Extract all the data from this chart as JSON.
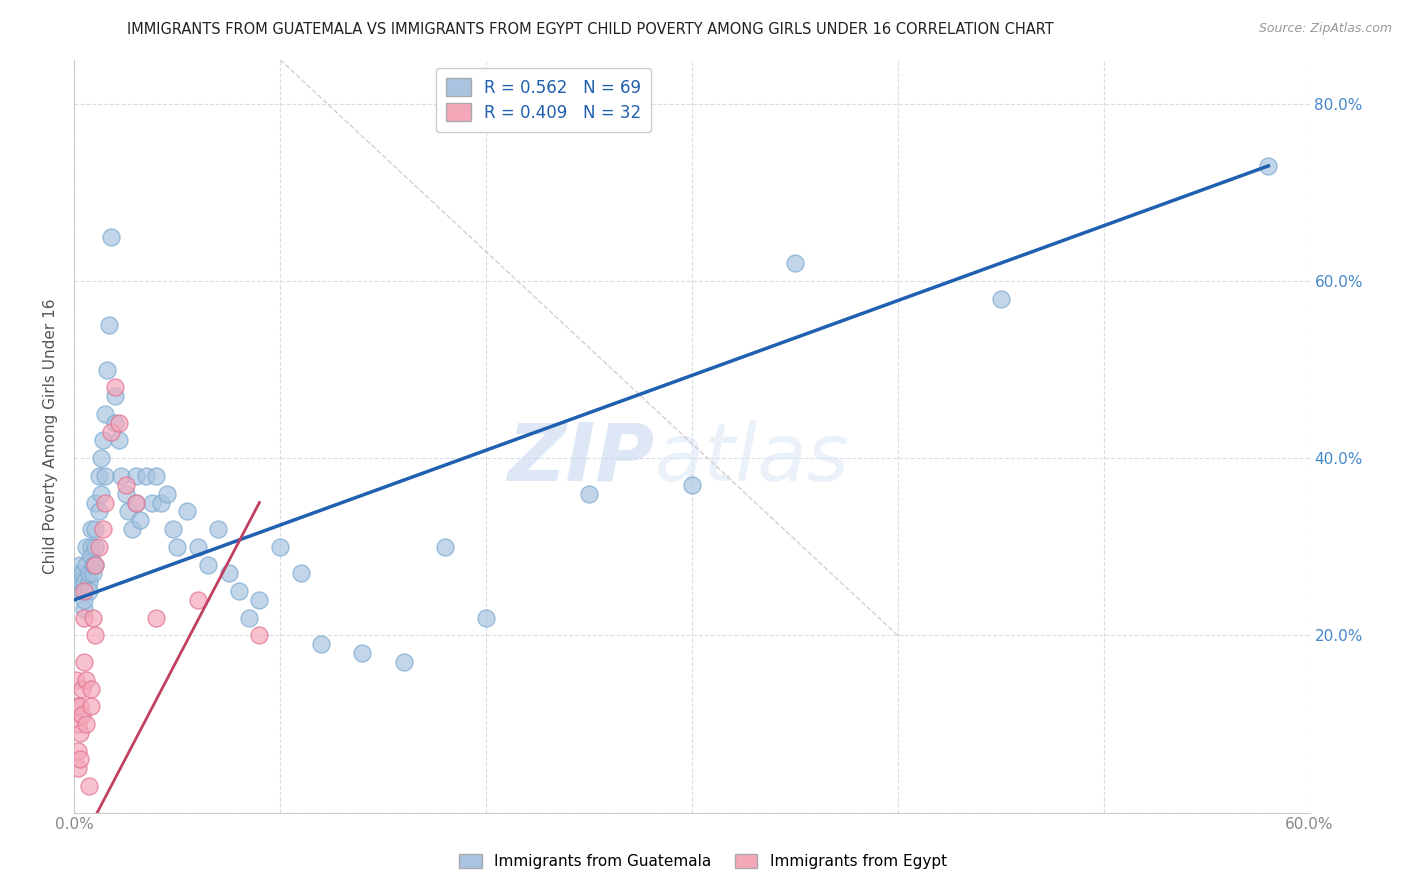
{
  "title": "IMMIGRANTS FROM GUATEMALA VS IMMIGRANTS FROM EGYPT CHILD POVERTY AMONG GIRLS UNDER 16 CORRELATION CHART",
  "source": "Source: ZipAtlas.com",
  "ylabel": "Child Poverty Among Girls Under 16",
  "xlim": [
    0.0,
    0.6
  ],
  "ylim": [
    0.0,
    0.85
  ],
  "xtick_positions": [
    0.0,
    0.1,
    0.2,
    0.3,
    0.4,
    0.5,
    0.6
  ],
  "xtick_labels": [
    "0.0%",
    "",
    "",
    "",
    "",
    "",
    "60.0%"
  ],
  "ytick_positions": [
    0.0,
    0.2,
    0.4,
    0.6,
    0.8
  ],
  "ytick_labels": [
    "",
    "20.0%",
    "40.0%",
    "60.0%",
    "80.0%"
  ],
  "guatemala_color": "#a8c4e0",
  "guatemala_edge_color": "#7aaad0",
  "egypt_color": "#f4a7b9",
  "egypt_edge_color": "#e07090",
  "guatemala_line_color": "#2060b0",
  "egypt_line_color": "#c04060",
  "diag_line_color": "#d0c0c8",
  "R_guatemala": 0.562,
  "N_guatemala": 69,
  "R_egypt": 0.409,
  "N_egypt": 32,
  "guatemala_scatter_x": [
    0.002,
    0.003,
    0.003,
    0.004,
    0.004,
    0.005,
    0.005,
    0.005,
    0.006,
    0.006,
    0.007,
    0.007,
    0.007,
    0.008,
    0.008,
    0.008,
    0.009,
    0.009,
    0.01,
    0.01,
    0.01,
    0.01,
    0.012,
    0.012,
    0.013,
    0.013,
    0.014,
    0.015,
    0.015,
    0.016,
    0.017,
    0.018,
    0.02,
    0.02,
    0.022,
    0.023,
    0.025,
    0.026,
    0.028,
    0.03,
    0.03,
    0.032,
    0.035,
    0.038,
    0.04,
    0.042,
    0.045,
    0.048,
    0.05,
    0.055,
    0.06,
    0.065,
    0.07,
    0.075,
    0.08,
    0.085,
    0.09,
    0.1,
    0.11,
    0.12,
    0.14,
    0.16,
    0.18,
    0.2,
    0.25,
    0.3,
    0.35,
    0.45,
    0.58
  ],
  "guatemala_scatter_y": [
    0.27,
    0.26,
    0.28,
    0.25,
    0.27,
    0.23,
    0.26,
    0.24,
    0.28,
    0.3,
    0.26,
    0.27,
    0.25,
    0.3,
    0.32,
    0.29,
    0.27,
    0.28,
    0.3,
    0.35,
    0.32,
    0.28,
    0.38,
    0.34,
    0.36,
    0.4,
    0.42,
    0.45,
    0.38,
    0.5,
    0.55,
    0.65,
    0.44,
    0.47,
    0.42,
    0.38,
    0.36,
    0.34,
    0.32,
    0.38,
    0.35,
    0.33,
    0.38,
    0.35,
    0.38,
    0.35,
    0.36,
    0.32,
    0.3,
    0.34,
    0.3,
    0.28,
    0.32,
    0.27,
    0.25,
    0.22,
    0.24,
    0.3,
    0.27,
    0.19,
    0.18,
    0.17,
    0.3,
    0.22,
    0.36,
    0.37,
    0.62,
    0.58,
    0.73
  ],
  "egypt_scatter_x": [
    0.001,
    0.001,
    0.002,
    0.002,
    0.002,
    0.003,
    0.003,
    0.003,
    0.004,
    0.004,
    0.005,
    0.005,
    0.005,
    0.006,
    0.006,
    0.007,
    0.008,
    0.008,
    0.009,
    0.01,
    0.01,
    0.012,
    0.014,
    0.015,
    0.018,
    0.02,
    0.022,
    0.025,
    0.03,
    0.04,
    0.06,
    0.09
  ],
  "egypt_scatter_y": [
    0.15,
    0.12,
    0.1,
    0.07,
    0.05,
    0.12,
    0.09,
    0.06,
    0.14,
    0.11,
    0.25,
    0.22,
    0.17,
    0.15,
    0.1,
    0.03,
    0.14,
    0.12,
    0.22,
    0.28,
    0.2,
    0.3,
    0.32,
    0.35,
    0.43,
    0.48,
    0.44,
    0.37,
    0.35,
    0.22,
    0.24,
    0.2
  ],
  "watermark_zip": "ZIP",
  "watermark_atlas": "atlas",
  "background_color": "#ffffff",
  "grid_color": "#d8dde8",
  "tick_color": "#888888",
  "right_tick_color": "#4488cc",
  "legend_label_guatemala": "Immigrants from Guatemala",
  "legend_label_egypt": "Immigrants from Egypt"
}
